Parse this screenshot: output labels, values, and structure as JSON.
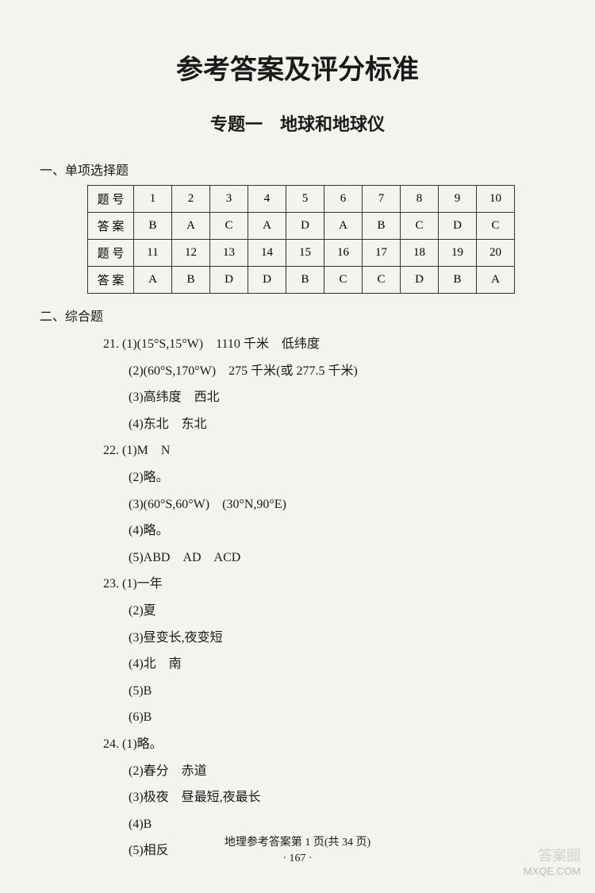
{
  "mainTitle": "参考答案及评分标准",
  "subTitle": "专题一　地球和地球仪",
  "section1": {
    "heading": "一、单项选择题",
    "tableRows": [
      {
        "label": "题 号",
        "cells": [
          "1",
          "2",
          "3",
          "4",
          "5",
          "6",
          "7",
          "8",
          "9",
          "10"
        ]
      },
      {
        "label": "答 案",
        "cells": [
          "B",
          "A",
          "C",
          "A",
          "D",
          "A",
          "B",
          "C",
          "D",
          "C"
        ]
      },
      {
        "label": "题 号",
        "cells": [
          "11",
          "12",
          "13",
          "14",
          "15",
          "16",
          "17",
          "18",
          "19",
          "20"
        ]
      },
      {
        "label": "答 案",
        "cells": [
          "A",
          "B",
          "D",
          "D",
          "B",
          "C",
          "C",
          "D",
          "B",
          "A"
        ]
      }
    ]
  },
  "section2": {
    "heading": "二、综合题",
    "items": [
      {
        "num": "21.",
        "lines": [
          "(1)(15°S,15°W)　1110 千米　低纬度",
          "(2)(60°S,170°W)　275 千米(或 277.5 千米)",
          "(3)高纬度　西北",
          "(4)东北　东北"
        ]
      },
      {
        "num": "22.",
        "lines": [
          "(1)M　N",
          "(2)略。",
          "(3)(60°S,60°W)　(30°N,90°E)",
          "(4)略。",
          "(5)ABD　AD　ACD"
        ]
      },
      {
        "num": "23.",
        "lines": [
          "(1)一年",
          "(2)夏",
          "(3)昼变长,夜变短",
          "(4)北　南",
          "(5)B",
          "(6)B"
        ]
      },
      {
        "num": "24.",
        "lines": [
          "(1)略。",
          "(2)春分　赤道",
          "(3)极夜　昼最短,夜最长",
          "(4)B",
          "(5)相反"
        ]
      }
    ]
  },
  "footer": {
    "line1": "地理参考答案第 1 页(共 34 页)",
    "line2": "· 167 ·"
  },
  "watermark": {
    "top": "答案圈",
    "bottom": "MXQE.COM"
  },
  "colors": {
    "background": "#f5f3ee",
    "text": "#1a1a1a",
    "border": "#333333"
  }
}
